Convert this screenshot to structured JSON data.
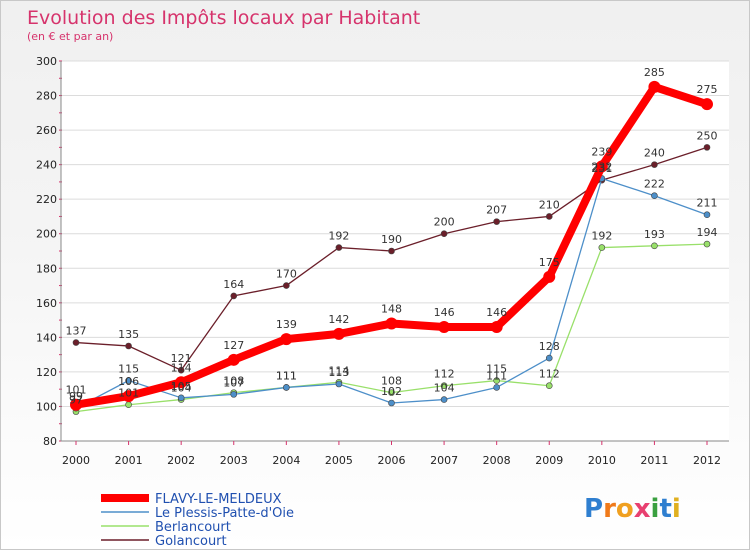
{
  "chart_data": {
    "type": "line",
    "title": "Evolution des Impôts locaux par Habitant",
    "subtitle": "(en € et par an)",
    "xlabel": "",
    "ylabel": "",
    "x": [
      "2000",
      "2001",
      "2002",
      "2003",
      "2004",
      "2005",
      "2006",
      "2007",
      "2008",
      "2009",
      "2010",
      "2011",
      "2012"
    ],
    "ylim": [
      80,
      300
    ],
    "yticks": [
      80,
      100,
      120,
      140,
      160,
      180,
      200,
      220,
      240,
      260,
      280,
      300
    ],
    "grid": "horizontal",
    "legend": "bottom-left",
    "series": [
      {
        "name": "Golancourt",
        "color": "#6b1f2a",
        "values": [
          137,
          135,
          121,
          164,
          170,
          192,
          190,
          200,
          207,
          210,
          231,
          240,
          250
        ]
      },
      {
        "name": "Berlancourt",
        "color": "#99e06a",
        "values": [
          97,
          101,
          104,
          108,
          111,
          114,
          108,
          112,
          115,
          112,
          192,
          193,
          194
        ]
      },
      {
        "name": "Le Plessis-Patte-d'Oie",
        "color": "#4d8fc9",
        "values": [
          99,
          115,
          105,
          107,
          111,
          113,
          102,
          104,
          111,
          128,
          232,
          222,
          211
        ]
      },
      {
        "name": "FLAVY-LE-MELDEUX",
        "color": "#ff0000",
        "values": [
          101,
          106,
          114,
          127,
          139,
          142,
          148,
          146,
          146,
          175,
          239,
          285,
          275
        ]
      }
    ],
    "legend_order": [
      "FLAVY-LE-MELDEUX",
      "Le Plessis-Patte-d'Oie",
      "Berlancourt",
      "Golancourt"
    ]
  },
  "brand": {
    "letters": [
      "P",
      "r",
      "o",
      "x",
      "i",
      "t",
      "i"
    ],
    "colors": [
      "#2f7fd0",
      "#f07a1a",
      "#f0a020",
      "#e84070",
      "#3aa040",
      "#2f7fd0",
      "#e0b020"
    ]
  }
}
